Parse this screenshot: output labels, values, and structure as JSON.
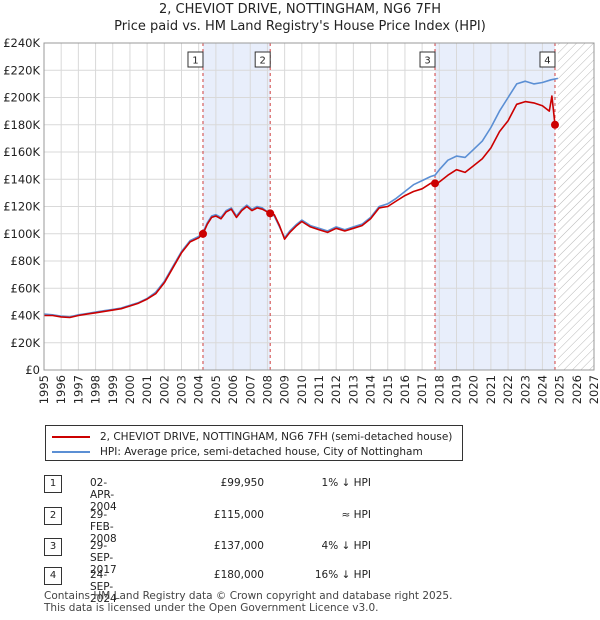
{
  "chart_data": {
    "type": "line",
    "title": "2, CHEVIOT DRIVE, NOTTINGHAM, NG6 7FH",
    "subtitle": "Price paid vs. HM Land Registry's House Price Index (HPI)",
    "xlim": [
      1995,
      2027
    ],
    "ylim": [
      0,
      240000
    ],
    "x_ticks": [
      "1995",
      "1996",
      "1997",
      "1998",
      "1999",
      "2000",
      "2001",
      "2002",
      "2003",
      "2004",
      "2005",
      "2006",
      "2007",
      "2008",
      "2009",
      "2010",
      "2011",
      "2012",
      "2013",
      "2014",
      "2015",
      "2016",
      "2017",
      "2018",
      "2019",
      "2020",
      "2021",
      "2022",
      "2023",
      "2024",
      "2025",
      "2026",
      "2027"
    ],
    "y_ticks": [
      {
        "value": 0,
        "label": "£0"
      },
      {
        "value": 20000,
        "label": "£20K"
      },
      {
        "value": 40000,
        "label": "£40K"
      },
      {
        "value": 60000,
        "label": "£60K"
      },
      {
        "value": 80000,
        "label": "£80K"
      },
      {
        "value": 100000,
        "label": "£100K"
      },
      {
        "value": 120000,
        "label": "£120K"
      },
      {
        "value": 140000,
        "label": "£140K"
      },
      {
        "value": 160000,
        "label": "£160K"
      },
      {
        "value": 180000,
        "label": "£180K"
      },
      {
        "value": 200000,
        "label": "£200K"
      },
      {
        "value": 220000,
        "label": "£220K"
      },
      {
        "value": 240000,
        "label": "£240K"
      }
    ],
    "data_end_x": 2024.9,
    "shaded_periods": [
      [
        2004.25,
        2008.16
      ],
      [
        2017.75,
        2024.73
      ]
    ],
    "series": [
      {
        "name": "2, CHEVIOT DRIVE, NOTTINGHAM, NG6 7FH (semi-detached house)",
        "color": "#cc0000",
        "points": [
          [
            1995,
            40000
          ],
          [
            1995.5,
            40000
          ],
          [
            1996,
            39000
          ],
          [
            1996.5,
            38500
          ],
          [
            1997,
            40000
          ],
          [
            1997.5,
            41000
          ],
          [
            1998,
            42000
          ],
          [
            1998.5,
            43000
          ],
          [
            1999,
            44000
          ],
          [
            1999.5,
            45000
          ],
          [
            2000,
            47000
          ],
          [
            2000.5,
            49000
          ],
          [
            2001,
            52000
          ],
          [
            2001.5,
            56000
          ],
          [
            2002,
            64000
          ],
          [
            2002.5,
            75000
          ],
          [
            2003,
            86000
          ],
          [
            2003.5,
            94000
          ],
          [
            2004,
            97000
          ],
          [
            2004.25,
            99950
          ],
          [
            2004.5,
            107000
          ],
          [
            2004.75,
            112000
          ],
          [
            2005,
            113000
          ],
          [
            2005.3,
            111000
          ],
          [
            2005.6,
            116000
          ],
          [
            2005.9,
            118000
          ],
          [
            2006.2,
            112000
          ],
          [
            2006.5,
            117000
          ],
          [
            2006.8,
            120000
          ],
          [
            2007.1,
            117000
          ],
          [
            2007.4,
            119000
          ],
          [
            2007.7,
            118000
          ],
          [
            2008,
            116000
          ],
          [
            2008.16,
            115000
          ],
          [
            2008.4,
            114000
          ],
          [
            2008.7,
            106000
          ],
          [
            2009,
            96000
          ],
          [
            2009.3,
            101000
          ],
          [
            2009.7,
            106000
          ],
          [
            2010,
            109000
          ],
          [
            2010.5,
            105000
          ],
          [
            2011,
            103000
          ],
          [
            2011.5,
            101000
          ],
          [
            2012,
            104000
          ],
          [
            2012.5,
            102000
          ],
          [
            2013,
            104000
          ],
          [
            2013.5,
            106000
          ],
          [
            2014,
            111000
          ],
          [
            2014.5,
            119000
          ],
          [
            2015,
            120000
          ],
          [
            2015.5,
            124000
          ],
          [
            2016,
            128000
          ],
          [
            2016.5,
            131000
          ],
          [
            2017,
            133000
          ],
          [
            2017.5,
            137000
          ],
          [
            2017.75,
            137000
          ],
          [
            2018,
            138000
          ],
          [
            2018.5,
            143000
          ],
          [
            2019,
            147000
          ],
          [
            2019.5,
            145000
          ],
          [
            2020,
            150000
          ],
          [
            2020.5,
            155000
          ],
          [
            2021,
            163000
          ],
          [
            2021.5,
            175000
          ],
          [
            2022,
            183000
          ],
          [
            2022.5,
            195000
          ],
          [
            2023,
            197000
          ],
          [
            2023.5,
            196000
          ],
          [
            2024,
            194000
          ],
          [
            2024.4,
            190000
          ],
          [
            2024.55,
            201000
          ],
          [
            2024.73,
            180000
          ]
        ]
      },
      {
        "name": "HPI: Average price, semi-detached house, City of Nottingham",
        "color": "#5b8fd4",
        "points": [
          [
            1995,
            41000
          ],
          [
            1995.5,
            40500
          ],
          [
            1996,
            39500
          ],
          [
            1996.5,
            39000
          ],
          [
            1997,
            40500
          ],
          [
            1997.5,
            41500
          ],
          [
            1998,
            42500
          ],
          [
            1998.5,
            43500
          ],
          [
            1999,
            44500
          ],
          [
            1999.5,
            45500
          ],
          [
            2000,
            47500
          ],
          [
            2000.5,
            49500
          ],
          [
            2001,
            52500
          ],
          [
            2001.5,
            57000
          ],
          [
            2002,
            65000
          ],
          [
            2002.5,
            76000
          ],
          [
            2003,
            87000
          ],
          [
            2003.5,
            95000
          ],
          [
            2004,
            98000
          ],
          [
            2004.25,
            101000
          ],
          [
            2004.5,
            108000
          ],
          [
            2004.75,
            113000
          ],
          [
            2005,
            114000
          ],
          [
            2005.3,
            112000
          ],
          [
            2005.6,
            117000
          ],
          [
            2005.9,
            119000
          ],
          [
            2006.2,
            113000
          ],
          [
            2006.5,
            118000
          ],
          [
            2006.8,
            121000
          ],
          [
            2007.1,
            118000
          ],
          [
            2007.4,
            120000
          ],
          [
            2007.7,
            119000
          ],
          [
            2008,
            116000
          ],
          [
            2008.16,
            115000
          ],
          [
            2008.4,
            113000
          ],
          [
            2008.7,
            105000
          ],
          [
            2009,
            97000
          ],
          [
            2009.3,
            102000
          ],
          [
            2009.7,
            107000
          ],
          [
            2010,
            110000
          ],
          [
            2010.5,
            106000
          ],
          [
            2011,
            104000
          ],
          [
            2011.5,
            102000
          ],
          [
            2012,
            105000
          ],
          [
            2012.5,
            103000
          ],
          [
            2013,
            105000
          ],
          [
            2013.5,
            107000
          ],
          [
            2014,
            112000
          ],
          [
            2014.5,
            120000
          ],
          [
            2015,
            122000
          ],
          [
            2015.5,
            126000
          ],
          [
            2016,
            131000
          ],
          [
            2016.5,
            136000
          ],
          [
            2017,
            139000
          ],
          [
            2017.5,
            142000
          ],
          [
            2017.75,
            143000
          ],
          [
            2018,
            147000
          ],
          [
            2018.5,
            154000
          ],
          [
            2019,
            157000
          ],
          [
            2019.5,
            156000
          ],
          [
            2020,
            162000
          ],
          [
            2020.5,
            168000
          ],
          [
            2021,
            178000
          ],
          [
            2021.5,
            190000
          ],
          [
            2022,
            200000
          ],
          [
            2022.5,
            210000
          ],
          [
            2023,
            212000
          ],
          [
            2023.5,
            210000
          ],
          [
            2024,
            211000
          ],
          [
            2024.5,
            213000
          ],
          [
            2024.9,
            214000
          ]
        ]
      }
    ],
    "markers": [
      {
        "label": "1",
        "x": 2004.25,
        "y": 99950
      },
      {
        "label": "2",
        "x": 2008.16,
        "y": 115000
      },
      {
        "label": "3",
        "x": 2017.75,
        "y": 137000
      },
      {
        "label": "4",
        "x": 2024.73,
        "y": 180000
      }
    ]
  },
  "legend": {
    "property_label": "2, CHEVIOT DRIVE, NOTTINGHAM, NG6 7FH (semi-detached house)",
    "hpi_label": "HPI: Average price, semi-detached house, City of Nottingham"
  },
  "transactions": [
    {
      "num": "1",
      "date": "02-APR-2004",
      "price": "£99,950",
      "hpi": "1% ↓ HPI"
    },
    {
      "num": "2",
      "date": "29-FEB-2008",
      "price": "£115,000",
      "hpi": "≈ HPI"
    },
    {
      "num": "3",
      "date": "29-SEP-2017",
      "price": "£137,000",
      "hpi": "4% ↓ HPI"
    },
    {
      "num": "4",
      "date": "24-SEP-2024",
      "price": "£180,000",
      "hpi": "16% ↓ HPI"
    }
  ],
  "footer": {
    "line1": "Contains HM Land Registry data © Crown copyright and database right 2025.",
    "line2": "This data is licensed under the Open Government Licence v3.0."
  },
  "colors": {
    "property": "#cc0000",
    "hpi": "#5b8fd4",
    "shade": "#e8eefb",
    "grid": "#d9d9d9"
  }
}
